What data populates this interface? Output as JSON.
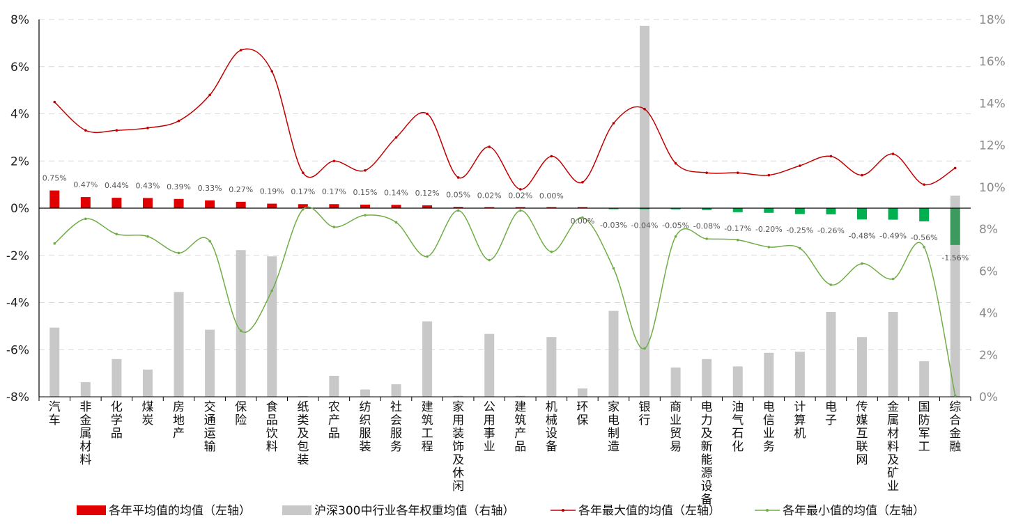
{
  "chart_data": {
    "type": "bar",
    "categories": [
      "汽车",
      "非金属材料",
      "化学品",
      "煤炭",
      "房地产",
      "交通运输",
      "保险",
      "食品饮料",
      "纸类及包装",
      "农产品",
      "纺织服装",
      "社会服务",
      "建筑工程",
      "家用装饰及休闲",
      "公用事业",
      "建筑产品",
      "机械设备",
      "环保",
      "家电制造",
      "银行",
      "商业贸易",
      "电力及新能源设备",
      "油气石化",
      "电信业务",
      "计算机",
      "电子",
      "传媒互联网",
      "金属材料及矿业",
      "国防军工",
      "综合金融"
    ],
    "series": [
      {
        "name": "各年平均值的均值（左轴）",
        "type": "bar",
        "axis": "left",
        "values": [
          0.75,
          0.47,
          0.44,
          0.43,
          0.39,
          0.33,
          0.27,
          0.19,
          0.17,
          0.17,
          0.15,
          0.14,
          0.12,
          0.05,
          0.02,
          0.02,
          0.0,
          0.0,
          -0.03,
          -0.04,
          -0.05,
          -0.08,
          -0.17,
          -0.2,
          -0.25,
          -0.26,
          -0.48,
          -0.49,
          -0.56,
          -1.56
        ],
        "labels": [
          "0.75%",
          "0.47%",
          "0.44%",
          "0.43%",
          "0.39%",
          "0.33%",
          "0.27%",
          "0.19%",
          "0.17%",
          "0.17%",
          "0.15%",
          "0.14%",
          "0.12%",
          "0.05%",
          "0.02%",
          "0.02%",
          "0.00%",
          "0.00%",
          "-0.03%",
          "-0.04%",
          "-0.05%",
          "-0.08%",
          "-0.17%",
          "-0.20%",
          "-0.25%",
          "-0.26%",
          "-0.48%",
          "-0.49%",
          "-0.56%",
          "-1.56%"
        ],
        "color_positive": "#e00000",
        "color_negative": "#00b050",
        "color_last": "#3c9a5f"
      },
      {
        "name": "沪深300中行业各年权重均值（右轴）",
        "type": "bar",
        "axis": "right",
        "values": [
          3.3,
          0.7,
          1.8,
          1.3,
          5.0,
          3.2,
          7.0,
          6.7,
          0.0,
          1.0,
          0.35,
          0.6,
          3.6,
          0.05,
          3.0,
          0.05,
          2.85,
          0.4,
          4.1,
          17.7,
          1.4,
          1.8,
          1.45,
          2.1,
          2.15,
          4.05,
          2.85,
          4.05,
          1.7,
          9.6
        ],
        "color": "#c8c8c8"
      },
      {
        "name": "各年最大值的均值（左轴）",
        "type": "line",
        "axis": "left",
        "values": [
          4.5,
          3.3,
          3.3,
          3.4,
          3.7,
          4.8,
          6.7,
          5.8,
          1.5,
          2.0,
          1.6,
          3.0,
          4.0,
          1.3,
          2.6,
          0.8,
          2.2,
          1.1,
          3.6,
          4.2,
          1.9,
          1.5,
          1.5,
          1.4,
          1.8,
          2.2,
          1.4,
          2.3,
          1.0,
          1.7
        ],
        "color": "#c00000"
      },
      {
        "name": "各年最小值的均值（左轴）",
        "type": "line",
        "axis": "left",
        "values": [
          -1.5,
          -0.45,
          -1.1,
          -1.2,
          -1.9,
          -1.4,
          -5.2,
          -3.5,
          -0.05,
          -0.8,
          -0.3,
          -0.6,
          -2.05,
          -0.1,
          -2.2,
          -0.1,
          -1.85,
          -0.4,
          -2.55,
          -5.95,
          -1.2,
          -1.3,
          -1.35,
          -1.65,
          -1.7,
          -3.25,
          -2.35,
          -3.0,
          -1.65,
          -7.95
        ],
        "color": "#70ad47"
      }
    ],
    "left_axis": {
      "min": -8,
      "max": 8,
      "step": 2,
      "ticks": [
        "8%",
        "6%",
        "4%",
        "2%",
        "0%",
        "-2%",
        "-4%",
        "-6%",
        "-8%"
      ]
    },
    "right_axis": {
      "min": 0,
      "max": 18,
      "step": 2,
      "ticks": [
        "18%",
        "16%",
        "14%",
        "12%",
        "10%",
        "8%",
        "6%",
        "4%",
        "2%",
        "0%"
      ]
    },
    "grid": true,
    "legend_position": "bottom",
    "title": "",
    "xlabel": "",
    "ylabel": ""
  }
}
